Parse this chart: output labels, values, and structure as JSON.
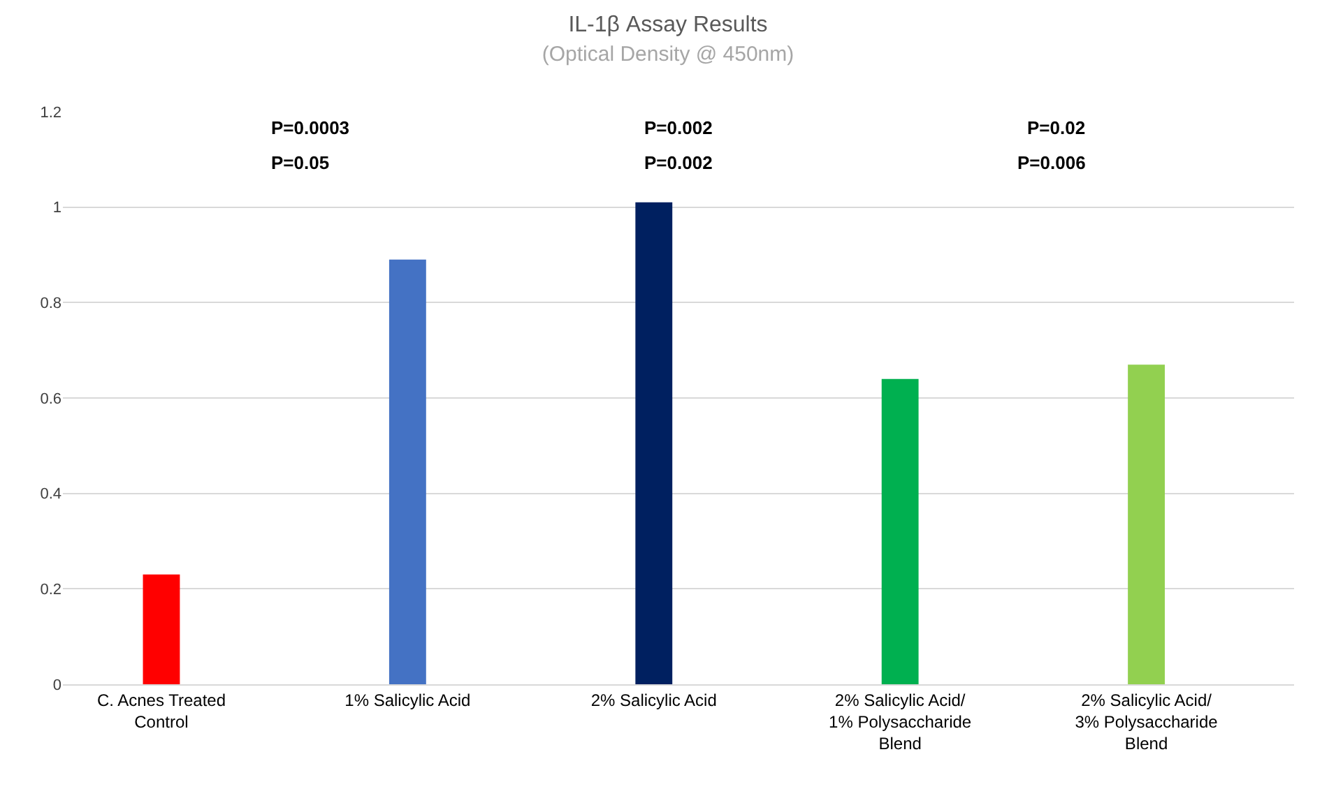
{
  "chart_data": {
    "type": "bar",
    "title": "IL-1β Assay Results",
    "subtitle": "(Optical Density @ 450nm)",
    "categories": [
      "C. Acnes Treated Control",
      "1% Salicylic Acid",
      "2% Salicylic Acid",
      "2% Salicylic Acid/ 1% Polysaccharide Blend",
      "2% Salicylic Acid/ 3% Polysaccharide Blend"
    ],
    "values": [
      0.23,
      0.89,
      1.01,
      0.64,
      0.67
    ],
    "colors": [
      "#ff0000",
      "#4472c4",
      "#002060",
      "#00b050",
      "#92d050"
    ],
    "ylim": [
      0,
      1.2
    ],
    "yticks": [
      0,
      0.2,
      0.4,
      0.6,
      0.8,
      1,
      1.2
    ],
    "grid": "y",
    "annotations": [
      "P=0.0003",
      "P=0.002",
      "P=0.02",
      "P=0.05",
      "P=0.002",
      "P=0.006"
    ]
  }
}
